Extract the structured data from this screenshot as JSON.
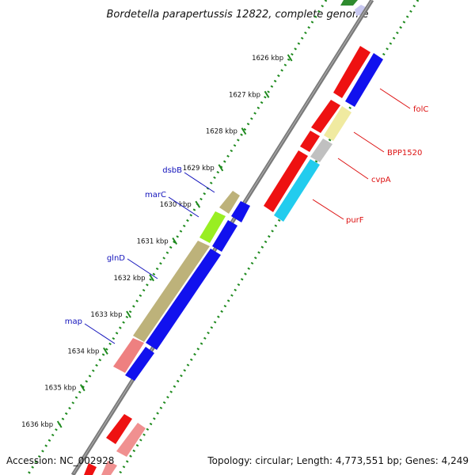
{
  "title": "Bordetella parapertussis 12822, complete genome",
  "footer": {
    "accession": "Accession: NC_002928",
    "summary": "Topology: circular; Length: 4,773,551 bp; Genes: 4,249"
  },
  "colors": {
    "backbone": "#808080",
    "ticks": "#1e8a1e",
    "label_right": "#dd1111",
    "label_left": "#1111bb"
  },
  "ticks": [
    {
      "label": "1626 kbp"
    },
    {
      "label": "1627 kbp"
    },
    {
      "label": "1628 kbp"
    },
    {
      "label": "1629 kbp"
    },
    {
      "label": "1630 kbp"
    },
    {
      "label": "1631 kbp"
    },
    {
      "label": "1632 kbp"
    },
    {
      "label": "1633 kbp"
    },
    {
      "label": "1634 kbp"
    },
    {
      "label": "1635 kbp"
    },
    {
      "label": "1636 kbp"
    }
  ],
  "gene_labels": [
    {
      "name": "folC",
      "side": "right"
    },
    {
      "name": "BPP1520",
      "side": "right"
    },
    {
      "name": "cvpA",
      "side": "right"
    },
    {
      "name": "purF",
      "side": "right"
    },
    {
      "name": "dsbB",
      "side": "left"
    },
    {
      "name": "marC",
      "side": "left"
    },
    {
      "name": "glnD",
      "side": "left"
    },
    {
      "name": "map",
      "side": "left"
    }
  ]
}
